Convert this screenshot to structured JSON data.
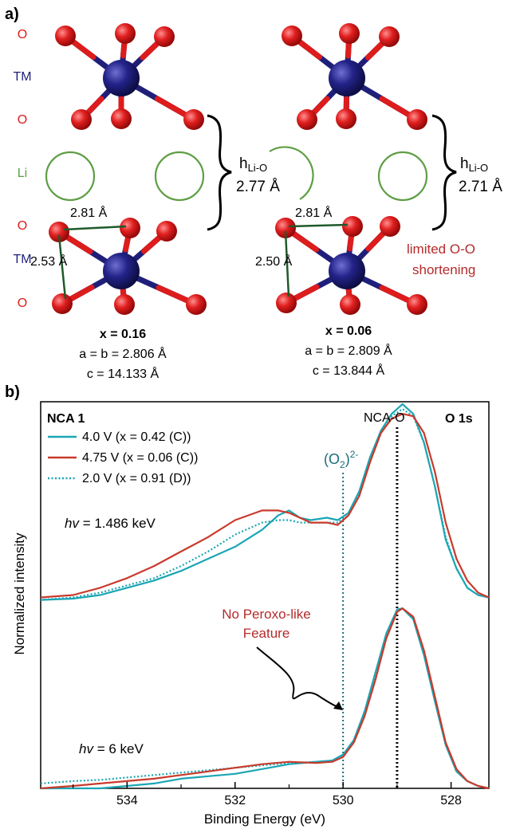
{
  "panel_a": {
    "panel_label": "a)",
    "layer_labels": [
      "O",
      "TM",
      "O",
      "Li",
      "O",
      "TM",
      "O"
    ],
    "left_structure": {
      "top_distance": "2.81 Å",
      "side_distance": "2.53 Å",
      "h_main": "h",
      "h_sub": "Li-O",
      "h_value": "2.77 Å",
      "x_label": "x = 0.16",
      "ab_label": "a = b = 2.806 Å",
      "c_label": "c = 14.133 Å"
    },
    "right_structure": {
      "top_distance": "2.81 Å",
      "side_distance": "2.50 Å",
      "h_main": "h",
      "h_sub": "Li-O",
      "h_value": "2.71 Å",
      "x_label": "x = 0.06",
      "ab_label": "a = b = 2.809 Å",
      "c_label": "c = 13.844 Å",
      "note_line1": "limited O-O",
      "note_line2": "shortening"
    },
    "colors": {
      "oxygen": "#dd1c1c",
      "tm": "#1f1f7a",
      "li_ring": "#5e9e44",
      "oo_line": "#1f5a2a"
    }
  },
  "panel_b": {
    "panel_label": "b)",
    "sample_label": "NCA 1",
    "core_level": "O 1s",
    "reference_label": "NCA-O",
    "peroxide_main": "(O",
    "peroxide_sub": "2",
    "peroxide_close": ")",
    "peroxide_sup": "2-",
    "hv_top_prefix": "hv",
    "hv_top_value": " = 1.486 keV",
    "hv_bottom_prefix": "hv",
    "hv_bottom_value": " = 6 keV",
    "annotation_line1": "No Peroxo-like",
    "annotation_line2": "Feature",
    "colors": {
      "teal": "#1aa6b4",
      "red": "#c93a2c",
      "annotation": "#b42b2b",
      "peroxide_line": "#1a6d79"
    }
  },
  "chart_data": {
    "type": "line",
    "xlabel": "Binding Energy (eV)",
    "ylabel": "Normalized intensity",
    "xlim": [
      535.6,
      527.3
    ],
    "x_reversed": true,
    "ylim": [
      0,
      1.6
    ],
    "tick_labels": [
      "534",
      "532",
      "530",
      "528"
    ],
    "ticks": [
      534,
      532,
      530,
      528
    ],
    "reference_lines": [
      {
        "label": "(O2)2-",
        "x": 530.0,
        "style": "dotted"
      },
      {
        "label": "NCA-O",
        "x": 529.0,
        "style": "dotted"
      }
    ],
    "series": [
      {
        "name": "4.0 V (x = 0.42 (C))",
        "color": "#1aa6b4",
        "dash": "solid",
        "spectra": [
          {
            "hv": "1.486 keV",
            "points": [
              [
                535.6,
                0.23
              ],
              [
                535.0,
                0.235
              ],
              [
                534.5,
                0.25
              ],
              [
                534.0,
                0.28
              ],
              [
                533.5,
                0.31
              ],
              [
                533.0,
                0.35
              ],
              [
                532.5,
                0.4
              ],
              [
                532.0,
                0.45
              ],
              [
                531.5,
                0.52
              ],
              [
                531.2,
                0.58
              ],
              [
                531.0,
                0.6
              ],
              [
                530.8,
                0.57
              ],
              [
                530.6,
                0.56
              ],
              [
                530.3,
                0.57
              ],
              [
                530.1,
                0.56
              ],
              [
                529.9,
                0.59
              ],
              [
                529.7,
                0.68
              ],
              [
                529.5,
                0.82
              ],
              [
                529.3,
                0.93
              ],
              [
                529.1,
                1.0
              ],
              [
                528.9,
                1.04
              ],
              [
                528.7,
                1.0
              ],
              [
                528.5,
                0.88
              ],
              [
                528.3,
                0.7
              ],
              [
                528.1,
                0.48
              ],
              [
                527.9,
                0.36
              ],
              [
                527.7,
                0.28
              ],
              [
                527.5,
                0.25
              ],
              [
                527.3,
                0.24
              ]
            ]
          },
          {
            "hv": "6 keV",
            "points": [
              [
                535.6,
                0.0
              ],
              [
                535.0,
                0.0
              ],
              [
                534.5,
                0.0
              ],
              [
                534.0,
                0.01
              ],
              [
                533.5,
                0.02
              ],
              [
                533.0,
                0.04
              ],
              [
                532.5,
                0.05
              ],
              [
                532.0,
                0.06
              ],
              [
                531.5,
                0.08
              ],
              [
                531.0,
                0.1
              ],
              [
                530.5,
                0.11
              ],
              [
                530.2,
                0.115
              ],
              [
                530.0,
                0.14
              ],
              [
                529.8,
                0.2
              ],
              [
                529.6,
                0.32
              ],
              [
                529.4,
                0.48
              ],
              [
                529.2,
                0.64
              ],
              [
                529.0,
                0.74
              ],
              [
                528.9,
                0.745
              ],
              [
                528.7,
                0.7
              ],
              [
                528.5,
                0.55
              ],
              [
                528.3,
                0.36
              ],
              [
                528.1,
                0.18
              ],
              [
                527.9,
                0.07
              ],
              [
                527.7,
                0.03
              ],
              [
                527.5,
                0.01
              ],
              [
                527.3,
                0.0
              ]
            ]
          }
        ]
      },
      {
        "name": "4.75 V (x = 0.06 (C))",
        "color": "#c93a2c",
        "dash": "solid",
        "spectra": [
          {
            "hv": "1.486 keV",
            "points": [
              [
                535.6,
                0.24
              ],
              [
                535.0,
                0.25
              ],
              [
                534.5,
                0.28
              ],
              [
                534.0,
                0.32
              ],
              [
                533.5,
                0.37
              ],
              [
                533.0,
                0.43
              ],
              [
                532.5,
                0.49
              ],
              [
                532.0,
                0.56
              ],
              [
                531.5,
                0.6
              ],
              [
                531.2,
                0.6
              ],
              [
                531.0,
                0.59
              ],
              [
                530.8,
                0.57
              ],
              [
                530.6,
                0.55
              ],
              [
                530.3,
                0.55
              ],
              [
                530.1,
                0.54
              ],
              [
                529.9,
                0.58
              ],
              [
                529.7,
                0.66
              ],
              [
                529.5,
                0.8
              ],
              [
                529.3,
                0.92
              ],
              [
                529.1,
                0.98
              ],
              [
                528.9,
                1.0
              ],
              [
                528.7,
                0.99
              ],
              [
                528.5,
                0.92
              ],
              [
                528.3,
                0.76
              ],
              [
                528.1,
                0.55
              ],
              [
                527.9,
                0.4
              ],
              [
                527.7,
                0.31
              ],
              [
                527.5,
                0.26
              ],
              [
                527.3,
                0.24
              ]
            ]
          },
          {
            "hv": "6 keV",
            "points": [
              [
                535.6,
                0.0
              ],
              [
                535.0,
                0.01
              ],
              [
                534.5,
                0.02
              ],
              [
                534.0,
                0.03
              ],
              [
                533.5,
                0.04
              ],
              [
                533.0,
                0.055
              ],
              [
                532.5,
                0.07
              ],
              [
                532.0,
                0.085
              ],
              [
                531.5,
                0.1
              ],
              [
                531.0,
                0.11
              ],
              [
                530.5,
                0.105
              ],
              [
                530.2,
                0.11
              ],
              [
                530.0,
                0.13
              ],
              [
                529.8,
                0.19
              ],
              [
                529.6,
                0.3
              ],
              [
                529.4,
                0.45
              ],
              [
                529.2,
                0.62
              ],
              [
                529.0,
                0.73
              ],
              [
                528.9,
                0.745
              ],
              [
                528.7,
                0.71
              ],
              [
                528.5,
                0.57
              ],
              [
                528.3,
                0.38
              ],
              [
                528.1,
                0.19
              ],
              [
                527.9,
                0.08
              ],
              [
                527.7,
                0.03
              ],
              [
                527.5,
                0.01
              ],
              [
                527.3,
                0.0
              ]
            ]
          }
        ]
      },
      {
        "name": "2.0 V (x = 0.91 (D))",
        "color": "#1aa6b4",
        "dash": "dotted",
        "spectra": [
          {
            "hv": "1.486 keV",
            "points": [
              [
                535.6,
                0.23
              ],
              [
                535.0,
                0.24
              ],
              [
                534.5,
                0.26
              ],
              [
                534.0,
                0.29
              ],
              [
                533.5,
                0.32
              ],
              [
                533.0,
                0.37
              ],
              [
                532.5,
                0.43
              ],
              [
                532.0,
                0.5
              ],
              [
                531.5,
                0.55
              ],
              [
                531.2,
                0.56
              ],
              [
                531.0,
                0.56
              ],
              [
                530.8,
                0.55
              ],
              [
                530.6,
                0.55
              ],
              [
                530.3,
                0.55
              ],
              [
                530.1,
                0.55
              ],
              [
                529.9,
                0.58
              ],
              [
                529.7,
                0.67
              ],
              [
                529.5,
                0.81
              ],
              [
                529.3,
                0.92
              ],
              [
                529.1,
                0.99
              ],
              [
                528.9,
                1.02
              ],
              [
                528.7,
                0.99
              ],
              [
                528.5,
                0.88
              ],
              [
                528.3,
                0.7
              ],
              [
                528.1,
                0.49
              ],
              [
                527.9,
                0.36
              ],
              [
                527.7,
                0.28
              ],
              [
                527.5,
                0.25
              ],
              [
                527.3,
                0.24
              ]
            ]
          },
          {
            "hv": "6 keV",
            "points": [
              [
                535.6,
                0.02
              ],
              [
                535.0,
                0.03
              ],
              [
                534.5,
                0.035
              ],
              [
                534.0,
                0.045
              ],
              [
                533.5,
                0.055
              ],
              [
                533.0,
                0.065
              ],
              [
                532.5,
                0.075
              ],
              [
                532.0,
                0.085
              ],
              [
                531.5,
                0.095
              ],
              [
                531.0,
                0.105
              ],
              [
                530.5,
                0.11
              ],
              [
                530.2,
                0.115
              ],
              [
                530.0,
                0.13
              ],
              [
                529.8,
                0.19
              ],
              [
                529.6,
                0.3
              ],
              [
                529.4,
                0.46
              ],
              [
                529.2,
                0.63
              ],
              [
                529.0,
                0.735
              ],
              [
                528.9,
                0.745
              ],
              [
                528.7,
                0.71
              ],
              [
                528.5,
                0.56
              ],
              [
                528.3,
                0.37
              ],
              [
                528.1,
                0.18
              ],
              [
                527.9,
                0.07
              ],
              [
                527.7,
                0.03
              ],
              [
                527.5,
                0.01
              ],
              [
                527.3,
                0.0
              ]
            ]
          }
        ]
      }
    ]
  }
}
